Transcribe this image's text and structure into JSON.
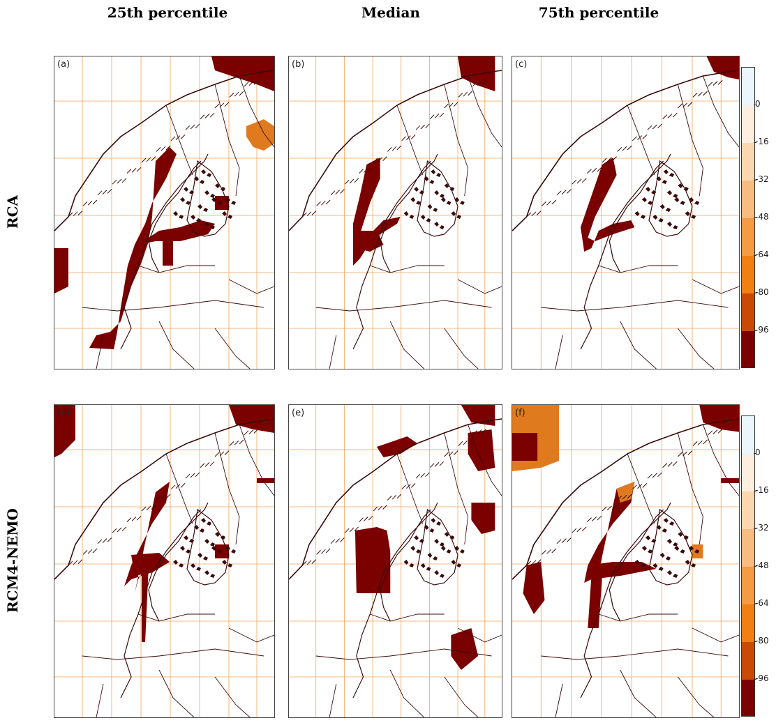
{
  "columns": [
    "25th percentile",
    "Median",
    "75th percentile"
  ],
  "rows": [
    "RCA",
    "RCM4-NEMO"
  ],
  "panels": [
    {
      "label": "(a)"
    },
    {
      "label": "(b)"
    },
    {
      "label": "(c)"
    },
    {
      "label": "(d)"
    },
    {
      "label": "(e)"
    },
    {
      "label": "(f)"
    }
  ],
  "colorbar": {
    "ticks": [
      "0",
      "-16",
      "-32",
      "-48",
      "-64",
      "-80",
      "-96"
    ],
    "colors": [
      "#eaf6fb",
      "#fdeee0",
      "#fbd7b0",
      "#f8bb80",
      "#f59a45",
      "#f07f14",
      "#c94a05",
      "#7b0000"
    ]
  },
  "colors": {
    "land_outline": "#3b0a0a",
    "grid": "#f3a35a",
    "fill_dark": "#7b0000",
    "fill_orange": "#e07a1e"
  }
}
